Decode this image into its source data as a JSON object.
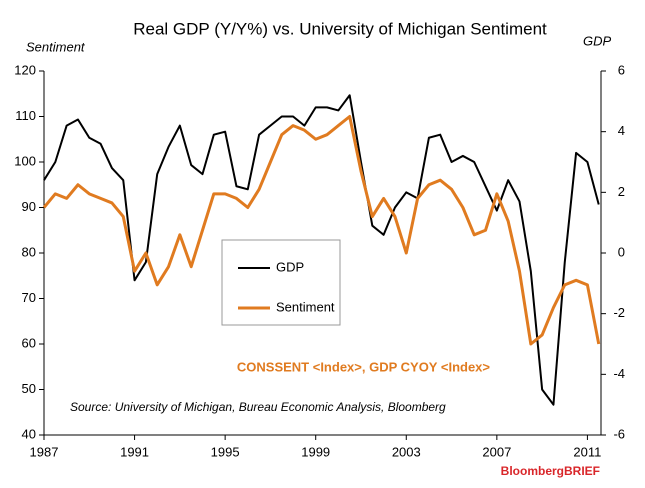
{
  "chart_data": {
    "type": "line",
    "title": "Real GDP (Y/Y%) vs. University of Michigan Sentiment",
    "y_label": "Sentiment",
    "y2_label": "GDP",
    "annotation": "CONSSENT <Index>, GDP  CYOY <Index>",
    "source": "Source: University of Michigan, Bureau Economic Analysis, Bloomberg",
    "brand": "BloombergBRIEF",
    "x": [
      1987,
      1987.5,
      1988,
      1988.5,
      1989,
      1989.5,
      1990,
      1990.5,
      1991,
      1991.5,
      1992,
      1992.5,
      1993,
      1993.5,
      1994,
      1994.5,
      1995,
      1995.5,
      1996,
      1996.5,
      1997,
      1997.5,
      1998,
      1998.5,
      1999,
      1999.5,
      2000,
      2000.5,
      2001,
      2001.5,
      2002,
      2002.5,
      2003,
      2003.5,
      2004,
      2004.5,
      2005,
      2005.5,
      2006,
      2006.5,
      2007,
      2007.5,
      2008,
      2008.5,
      2009,
      2009.5,
      2010,
      2010.5,
      2011,
      2011.5
    ],
    "xlim": [
      1987,
      2011.6
    ],
    "xticks": [
      1987,
      1991,
      1995,
      1999,
      2003,
      2007,
      2011
    ],
    "ylim": [
      40,
      120
    ],
    "yticks": [
      40,
      50,
      60,
      70,
      80,
      90,
      100,
      110,
      120
    ],
    "y2lim": [
      -6,
      6
    ],
    "y2ticks": [
      -6,
      -4,
      -2,
      0,
      2,
      4,
      6
    ],
    "legend": "center",
    "series": [
      {
        "name": "GDP",
        "color": "#000000",
        "axis": "y2",
        "values": [
          2.4,
          3.0,
          4.2,
          4.4,
          3.8,
          3.6,
          2.8,
          2.4,
          -0.9,
          -0.3,
          2.6,
          3.5,
          4.2,
          2.9,
          2.6,
          3.9,
          4.0,
          2.2,
          2.1,
          3.9,
          4.2,
          4.5,
          4.5,
          4.2,
          4.8,
          4.8,
          4.7,
          5.2,
          3.0,
          0.9,
          0.6,
          1.5,
          2.0,
          1.8,
          3.8,
          3.9,
          3.0,
          3.2,
          3.0,
          2.2,
          1.4,
          2.4,
          1.7,
          -0.6,
          -4.5,
          -5.0,
          -0.3,
          3.3,
          3.0,
          1.6
        ]
      },
      {
        "name": "Sentiment",
        "color": "#e07b20",
        "values": [
          90,
          93,
          92,
          95,
          93,
          92,
          91,
          88,
          76,
          80,
          73,
          77,
          84,
          77,
          85,
          93,
          93,
          92,
          90,
          94,
          100,
          106,
          108,
          107,
          105,
          106,
          108,
          110,
          98,
          88,
          92,
          88,
          80,
          92,
          95,
          96,
          94,
          90,
          84,
          85,
          93,
          87,
          76,
          60,
          62,
          68,
          73,
          74,
          73,
          60
        ]
      }
    ]
  }
}
